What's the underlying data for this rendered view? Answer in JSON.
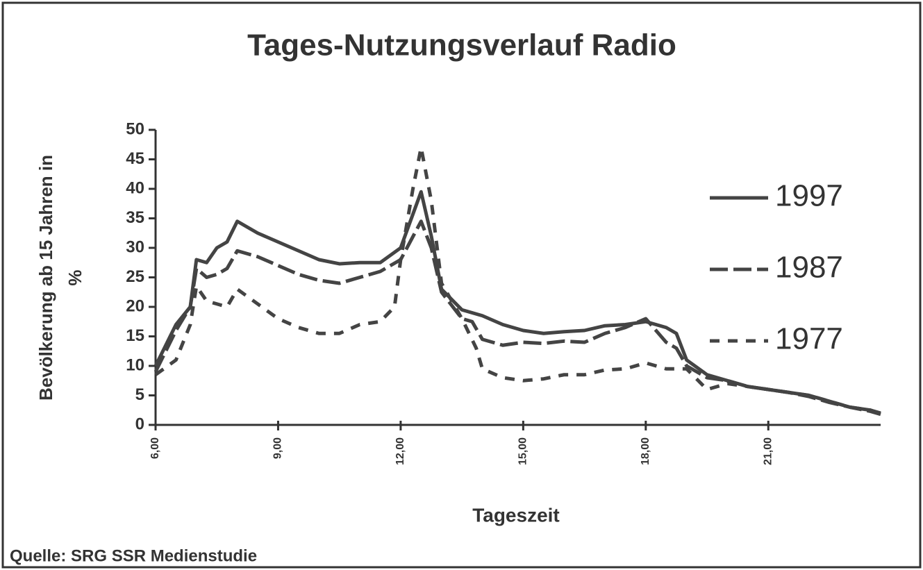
{
  "chart_data": {
    "type": "line",
    "title": "Tages-Nutzungsverlauf Radio",
    "xlabel": "Tageszeit",
    "ylabel": [
      "Bevölkerung ab 15 Jahren in",
      "%"
    ],
    "source": "Quelle: SRG SSR Medienstudie",
    "xlim": [
      6,
      23.75
    ],
    "xticks": [
      {
        "value": 6,
        "label": "6,00"
      },
      {
        "value": 9,
        "label": "9,00"
      },
      {
        "value": 12,
        "label": "12,00"
      },
      {
        "value": 15,
        "label": "15,00"
      },
      {
        "value": 18,
        "label": "18,00"
      },
      {
        "value": 21,
        "label": "21,00"
      }
    ],
    "ylim": [
      0,
      50
    ],
    "yticks": [
      0,
      5,
      10,
      15,
      20,
      25,
      30,
      35,
      40,
      45,
      50
    ],
    "legend": "right",
    "series": [
      {
        "name": "1997",
        "color": "#444444",
        "dash": "solid",
        "x": [
          6,
          6.5,
          6.85,
          7,
          7.25,
          7.5,
          7.75,
          8,
          8.5,
          9,
          9.5,
          10,
          10.5,
          11,
          11.5,
          12,
          12.5,
          12.75,
          13,
          13.5,
          14,
          14.5,
          15,
          15.5,
          16,
          16.5,
          17,
          17.5,
          18,
          18.5,
          18.75,
          19,
          19.5,
          20,
          20.5,
          21,
          21.5,
          22,
          22.5,
          23,
          23.5,
          23.75
        ],
        "values": [
          10,
          17,
          20,
          28,
          27.5,
          30,
          31,
          34.5,
          32.5,
          31,
          29.5,
          28,
          27.3,
          27.5,
          27.5,
          30,
          39.5,
          32,
          23,
          19.5,
          18.5,
          17,
          16,
          15.5,
          15.8,
          16,
          16.8,
          17,
          17.5,
          16.5,
          15.5,
          11,
          8.5,
          7.5,
          6.5,
          6,
          5.5,
          5,
          4,
          3,
          2.5,
          2
        ]
      },
      {
        "name": "1987",
        "color": "#444444",
        "dash": "long",
        "x": [
          6,
          6.5,
          6.85,
          7,
          7.25,
          7.5,
          7.75,
          8,
          8.5,
          9,
          9.5,
          10,
          10.5,
          11,
          11.5,
          12,
          12.5,
          12.75,
          13,
          13.5,
          13.75,
          14,
          14.5,
          15,
          15.5,
          16,
          16.5,
          17,
          17.5,
          18,
          18.5,
          18.75,
          19,
          19.5,
          20,
          20.5,
          21,
          21.5,
          22,
          22.5,
          23,
          23.5,
          23.75
        ],
        "values": [
          9,
          16,
          20,
          26.5,
          25,
          25.5,
          26.5,
          29.5,
          28.5,
          27,
          25.5,
          24.5,
          24,
          25,
          26,
          28,
          34.5,
          30,
          22.5,
          18,
          17.5,
          14.5,
          13.5,
          14,
          13.8,
          14.2,
          14,
          15.5,
          16.5,
          18,
          14,
          13,
          10,
          8,
          7.5,
          6.5,
          6,
          5.5,
          4.8,
          3.8,
          3,
          2.3,
          1.8
        ]
      },
      {
        "name": "1977",
        "color": "#444444",
        "dash": "short",
        "x": [
          6,
          6.5,
          6.85,
          7,
          7.25,
          7.5,
          7.75,
          8,
          8.5,
          9,
          9.5,
          10,
          10.5,
          11,
          11.5,
          11.85,
          12,
          12.3,
          12.5,
          12.75,
          13,
          13.5,
          13.85,
          14,
          14.5,
          15,
          15.5,
          16,
          16.5,
          17,
          17.5,
          18,
          18.5,
          19,
          19.5,
          20,
          20.5,
          21,
          21.5,
          22,
          22.5,
          23,
          23.5,
          23.75
        ],
        "values": [
          8.5,
          11,
          17,
          23.5,
          21,
          20.5,
          20,
          23,
          20.5,
          18,
          16.5,
          15.5,
          15.5,
          17,
          17.5,
          20,
          28,
          40,
          47,
          38,
          24,
          18,
          13,
          9.5,
          8,
          7.5,
          7.8,
          8.5,
          8.5,
          9.3,
          9.5,
          10.5,
          9.5,
          9.5,
          6,
          7,
          6.5,
          6,
          5.5,
          5,
          4,
          3,
          2.5,
          1.8
        ]
      }
    ]
  }
}
